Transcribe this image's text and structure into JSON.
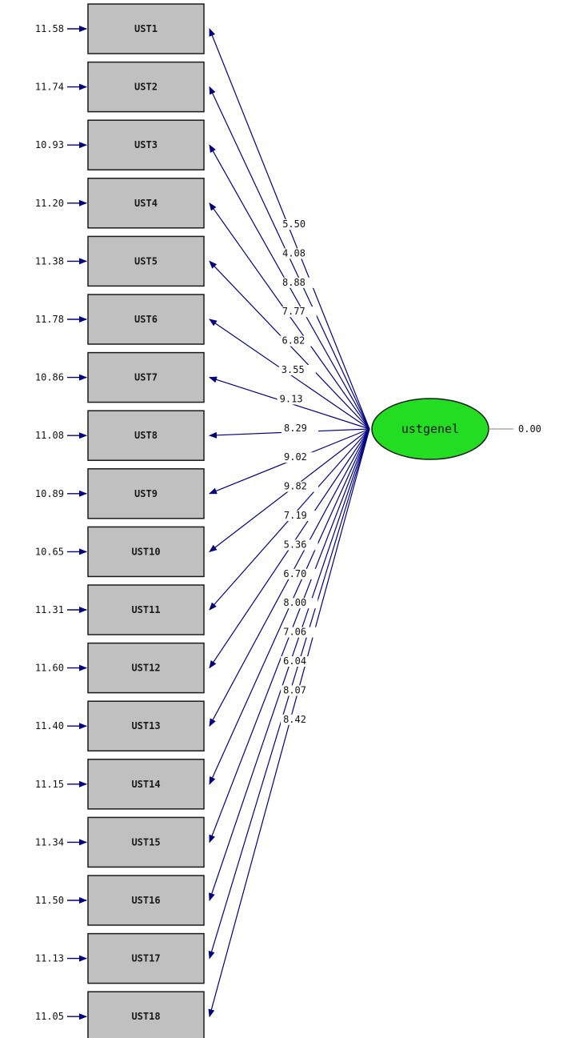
{
  "latent": {
    "name": "ustgenel",
    "variance": "0.00",
    "fill_color": "#22dd22"
  },
  "colors": {
    "arrow": "#000080",
    "box_fill": "#c0c0c0"
  },
  "indicators": [
    {
      "name": "UST1",
      "error": "11.58",
      "t_value": "5.50"
    },
    {
      "name": "UST2",
      "error": "11.74",
      "t_value": "4.08"
    },
    {
      "name": "UST3",
      "error": "10.93",
      "t_value": "8.88"
    },
    {
      "name": "UST4",
      "error": "11.20",
      "t_value": "7.77"
    },
    {
      "name": "UST5",
      "error": "11.38",
      "t_value": "6.82"
    },
    {
      "name": "UST6",
      "error": "11.78",
      "t_value": "3.55"
    },
    {
      "name": "UST7",
      "error": "10.86",
      "t_value": "9.13"
    },
    {
      "name": "UST8",
      "error": "11.08",
      "t_value": "8.29"
    },
    {
      "name": "UST9",
      "error": "10.89",
      "t_value": "9.02"
    },
    {
      "name": "UST10",
      "error": "10.65",
      "t_value": "9.82"
    },
    {
      "name": "UST11",
      "error": "11.31",
      "t_value": "7.19"
    },
    {
      "name": "UST12",
      "error": "11.60",
      "t_value": "5.36"
    },
    {
      "name": "UST13",
      "error": "11.40",
      "t_value": "6.70"
    },
    {
      "name": "UST14",
      "error": "11.15",
      "t_value": "8.00"
    },
    {
      "name": "UST15",
      "error": "11.34",
      "t_value": "7.06"
    },
    {
      "name": "UST16",
      "error": "11.50",
      "t_value": "6.04"
    },
    {
      "name": "UST17",
      "error": "11.13",
      "t_value": "8.07"
    },
    {
      "name": "UST18",
      "error": "11.05",
      "t_value": "8.42"
    }
  ]
}
